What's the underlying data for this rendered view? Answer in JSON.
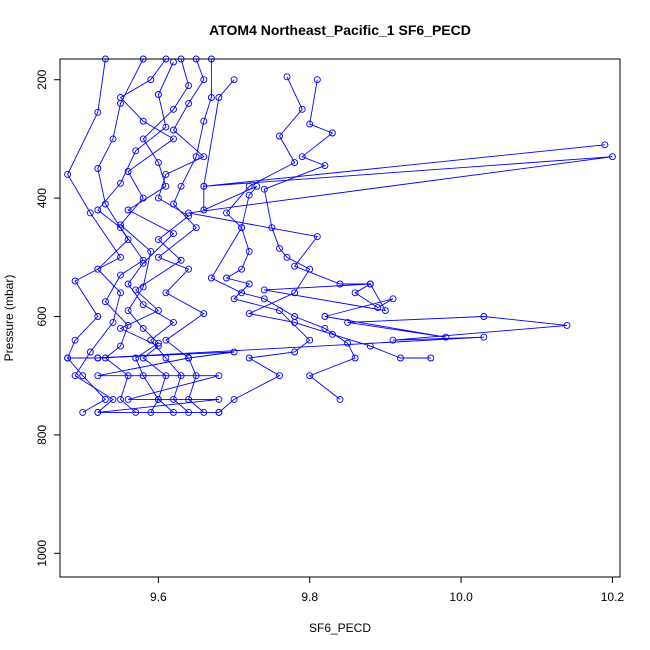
{
  "chart_data": {
    "type": "line",
    "title": "ATOM4 Northeast_Pacific_1 SF6_PECD",
    "xlabel": "SF6_PECD",
    "ylabel": "Pressure (mbar)",
    "xlim": [
      9.47,
      10.21
    ],
    "ylim": [
      1040,
      165
    ],
    "y_reversed": true,
    "x_ticks": [
      {
        "value": 9.6,
        "label": "9.6"
      },
      {
        "value": 9.8,
        "label": "9.8"
      },
      {
        "value": 10.0,
        "label": "10.0"
      },
      {
        "value": 10.2,
        "label": "10.2"
      }
    ],
    "y_ticks": [
      {
        "value": 200,
        "label": "200"
      },
      {
        "value": 400,
        "label": "400"
      },
      {
        "value": 600,
        "label": "600"
      },
      {
        "value": 800,
        "label": "800"
      },
      {
        "value": 1000,
        "label": "1000"
      }
    ],
    "line_color": "#0000ff",
    "marker": "open-circle",
    "grid": false,
    "legend": "none",
    "series": [
      {
        "points": [
          [
            9.53,
            165
          ],
          [
            9.52,
            255
          ],
          [
            9.48,
            360
          ],
          [
            9.51,
            425
          ],
          [
            9.55,
            500
          ],
          [
            9.49,
            540
          ],
          [
            9.52,
            600
          ],
          [
            9.49,
            640
          ],
          [
            9.48,
            670
          ],
          [
            9.5,
            700
          ],
          [
            9.53,
            740
          ],
          [
            9.5,
            762
          ]
        ]
      },
      {
        "points": [
          [
            9.58,
            165
          ],
          [
            9.55,
            240
          ],
          [
            9.54,
            300
          ],
          [
            9.52,
            350
          ],
          [
            9.53,
            410
          ],
          [
            9.56,
            470
          ],
          [
            9.52,
            520
          ],
          [
            9.55,
            560
          ],
          [
            9.54,
            610
          ],
          [
            9.51,
            660
          ],
          [
            9.49,
            700
          ],
          [
            9.54,
            740
          ],
          [
            9.52,
            762
          ]
        ]
      },
      {
        "points": [
          [
            9.62,
            170
          ],
          [
            9.6,
            225
          ],
          [
            9.61,
            280
          ],
          [
            9.57,
            320
          ],
          [
            9.55,
            375
          ],
          [
            9.52,
            420
          ],
          [
            9.55,
            450
          ],
          [
            9.58,
            505
          ],
          [
            9.55,
            530
          ],
          [
            9.53,
            575
          ],
          [
            9.56,
            615
          ],
          [
            9.55,
            650
          ],
          [
            9.53,
            670
          ],
          [
            9.56,
            700
          ],
          [
            9.55,
            740
          ],
          [
            9.57,
            762
          ]
        ]
      },
      {
        "points": [
          [
            9.61,
            165
          ],
          [
            9.59,
            200
          ],
          [
            9.55,
            230
          ],
          [
            9.58,
            270
          ],
          [
            9.62,
            300
          ],
          [
            9.56,
            355
          ],
          [
            9.58,
            400
          ],
          [
            9.55,
            445
          ],
          [
            9.59,
            490
          ],
          [
            9.58,
            550
          ],
          [
            9.56,
            590
          ],
          [
            9.58,
            620
          ],
          [
            9.6,
            645
          ],
          [
            9.57,
            670
          ],
          [
            9.58,
            700
          ],
          [
            9.6,
            740
          ],
          [
            9.59,
            762
          ]
        ]
      },
      {
        "points": [
          [
            9.63,
            165
          ],
          [
            9.64,
            210
          ],
          [
            9.62,
            250
          ],
          [
            9.58,
            300
          ],
          [
            9.6,
            340
          ],
          [
            9.61,
            380
          ],
          [
            9.56,
            420
          ],
          [
            9.62,
            460
          ],
          [
            9.58,
            510
          ],
          [
            9.56,
            545
          ],
          [
            9.58,
            580
          ],
          [
            9.62,
            610
          ],
          [
            9.59,
            640
          ],
          [
            9.61,
            670
          ],
          [
            9.63,
            700
          ],
          [
            9.62,
            740
          ],
          [
            9.64,
            762
          ]
        ]
      },
      {
        "points": [
          [
            9.65,
            165
          ],
          [
            9.66,
            200
          ],
          [
            9.64,
            240
          ],
          [
            9.62,
            285
          ],
          [
            9.66,
            330
          ],
          [
            9.61,
            360
          ],
          [
            9.6,
            400
          ],
          [
            9.64,
            430
          ],
          [
            9.6,
            470
          ],
          [
            9.63,
            505
          ],
          [
            9.57,
            555
          ],
          [
            9.6,
            590
          ],
          [
            9.55,
            620
          ],
          [
            9.6,
            650
          ],
          [
            9.58,
            670
          ],
          [
            9.61,
            700
          ],
          [
            9.6,
            740
          ],
          [
            9.62,
            762
          ]
        ]
      },
      {
        "points": [
          [
            9.67,
            165
          ],
          [
            9.67,
            230
          ],
          [
            9.66,
            270
          ],
          [
            9.65,
            330
          ],
          [
            9.63,
            380
          ],
          [
            9.62,
            410
          ],
          [
            9.65,
            450
          ],
          [
            9.6,
            500
          ],
          [
            9.64,
            520
          ],
          [
            9.61,
            560
          ],
          [
            9.66,
            595
          ],
          [
            9.61,
            640
          ],
          [
            9.64,
            670
          ],
          [
            9.65,
            700
          ],
          [
            9.64,
            740
          ],
          [
            9.66,
            762
          ]
        ]
      },
      {
        "points": [
          [
            9.7,
            200
          ],
          [
            9.68,
            230
          ],
          [
            9.66,
            380
          ],
          [
            9.66,
            420
          ],
          [
            9.73,
            380
          ],
          [
            9.72,
            395
          ],
          [
            9.71,
            450
          ],
          [
            9.72,
            490
          ],
          [
            9.71,
            520
          ],
          [
            9.69,
            535
          ],
          [
            9.72,
            545
          ],
          [
            9.7,
            570
          ],
          [
            9.76,
            590
          ],
          [
            9.8,
            640
          ],
          [
            9.78,
            660
          ],
          [
            9.72,
            670
          ],
          [
            9.76,
            700
          ],
          [
            9.7,
            740
          ],
          [
            9.68,
            762
          ]
        ]
      },
      {
        "points": [
          [
            9.77,
            195
          ],
          [
            9.79,
            250
          ],
          [
            9.76,
            295
          ],
          [
            9.78,
            340
          ],
          [
            9.72,
            380
          ],
          [
            9.69,
            425
          ],
          [
            9.71,
            450
          ],
          [
            9.67,
            535
          ],
          [
            9.71,
            560
          ],
          [
            9.74,
            570
          ],
          [
            9.78,
            600
          ],
          [
            9.82,
            620
          ],
          [
            9.85,
            645
          ],
          [
            9.86,
            670
          ],
          [
            9.8,
            700
          ],
          [
            9.84,
            740
          ]
        ]
      },
      {
        "points": [
          [
            9.81,
            200
          ],
          [
            9.8,
            275
          ],
          [
            9.83,
            290
          ],
          [
            9.79,
            330
          ],
          [
            9.82,
            345
          ],
          [
            9.74,
            385
          ],
          [
            9.75,
            450
          ],
          [
            9.76,
            485
          ],
          [
            9.77,
            500
          ],
          [
            9.8,
            520
          ],
          [
            9.78,
            560
          ],
          [
            9.72,
            595
          ],
          [
            9.78,
            610
          ],
          [
            9.83,
            630
          ],
          [
            9.88,
            650
          ],
          [
            9.92,
            670
          ],
          [
            9.96,
            670
          ]
        ]
      },
      {
        "points": [
          [
            10.19,
            310
          ],
          [
            9.66,
            380
          ],
          [
            10.2,
            330
          ],
          [
            9.64,
            425
          ],
          [
            9.81,
            465
          ],
          [
            9.78,
            515
          ],
          [
            9.84,
            545
          ],
          [
            9.88,
            545
          ],
          [
            9.9,
            590
          ],
          [
            9.74,
            555
          ],
          [
            9.88,
            545
          ],
          [
            9.86,
            560
          ],
          [
            9.89,
            585
          ],
          [
            9.91,
            570
          ],
          [
            9.82,
            600
          ],
          [
            9.98,
            635
          ],
          [
            9.85,
            610
          ],
          [
            10.03,
            600
          ],
          [
            10.14,
            615
          ],
          [
            9.91,
            640
          ],
          [
            10.03,
            635
          ],
          [
            9.52,
            670
          ],
          [
            9.48,
            670
          ]
        ]
      },
      {
        "points": [
          [
            9.52,
            670
          ],
          [
            9.7,
            660
          ],
          [
            9.64,
            670
          ],
          [
            9.52,
            700
          ],
          [
            9.68,
            700
          ],
          [
            9.56,
            740
          ],
          [
            9.68,
            740
          ],
          [
            9.52,
            762
          ],
          [
            9.68,
            762
          ]
        ]
      }
    ]
  }
}
